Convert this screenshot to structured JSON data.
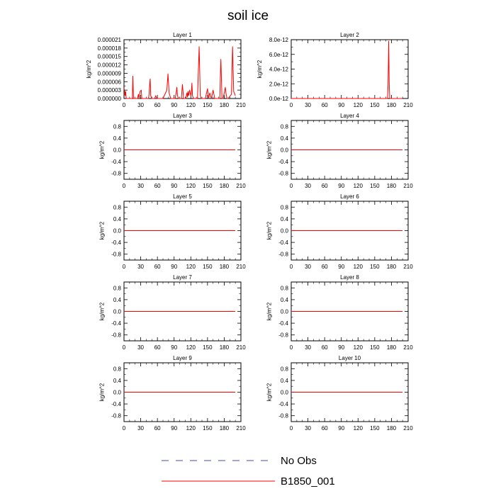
{
  "title": "soil ice",
  "legend": [
    {
      "label": "No Obs",
      "color": "#4a4ab0",
      "dashed": true
    },
    {
      "label": "B1850_001",
      "color": "#ff0000",
      "dashed": false
    }
  ],
  "chart_data": [
    {
      "type": "line",
      "title": "Layer 1",
      "ylabel": "kg/m^2",
      "xlim": [
        0,
        210
      ],
      "xticks": [
        0,
        30,
        60,
        90,
        120,
        150,
        180,
        210
      ],
      "ylim": [
        0,
        2.1e-05
      ],
      "yticks": [
        0,
        3e-06,
        6e-06,
        9e-06,
        1.2e-05,
        1.5e-05,
        1.8e-05,
        2.1e-05
      ],
      "ytick_labels": [
        "0.000000",
        "0.000003",
        "0.000006",
        "0.000009",
        "0.000012",
        "0.000015",
        "0.000018",
        "0.000021"
      ],
      "series": [
        {
          "color": "#ff0000",
          "x": [
            0,
            1,
            2,
            3,
            4,
            13,
            15,
            16,
            17,
            24,
            26,
            27,
            29,
            31,
            32,
            36,
            44,
            45,
            46,
            47,
            48,
            50,
            55,
            56,
            57,
            58,
            59,
            62,
            70,
            77,
            79,
            81,
            84,
            92,
            94,
            95,
            96,
            98,
            103,
            105,
            107,
            111,
            113,
            114,
            115,
            116,
            118,
            120,
            121,
            122,
            123,
            125,
            126,
            132,
            135,
            137,
            139,
            141,
            146,
            150,
            152,
            154,
            157,
            160,
            162,
            163,
            165,
            172,
            174,
            176,
            178,
            182,
            183,
            185,
            187,
            193,
            195,
            197,
            200
          ],
          "y": [
            3.5e-06,
            3e-06,
            1e-06,
            2.5e-06,
            0,
            0,
            0,
            8e-06,
            0,
            0,
            1.5e-06,
            0,
            2.5e-06,
            3e-06,
            0,
            0,
            0,
            1.5e-06,
            4.5e-06,
            7e-06,
            1e-06,
            0,
            0,
            5e-07,
            1e-06,
            5e-07,
            0,
            0,
            0,
            3e-06,
            8.8e-06,
            2e-06,
            0,
            0,
            2.5e-06,
            4e-06,
            1e-06,
            0,
            0,
            5e-06,
            0,
            0,
            2e-06,
            5e-07,
            2.5e-06,
            1e-06,
            3e-06,
            1e-06,
            2e-06,
            5.5e-06,
            1e-06,
            0,
            0,
            0,
            1.85e-05,
            1e-06,
            0,
            0,
            0,
            3.5e-06,
            0,
            2e-06,
            0,
            3e-06,
            1e-06,
            0,
            0,
            0,
            1.4e-05,
            0,
            0,
            4e-06,
            2e-06,
            0,
            0,
            1.5e-06,
            1.85e-05,
            2.5e-06,
            1e-06
          ]
        }
      ]
    },
    {
      "type": "line",
      "title": "Layer 2",
      "ylabel": "kg/m^2",
      "xlim": [
        0,
        210
      ],
      "xticks": [
        0,
        30,
        60,
        90,
        120,
        150,
        180,
        210
      ],
      "ylim": [
        0,
        8e-12
      ],
      "yticks": [
        0,
        2e-12,
        4e-12,
        6e-12,
        8e-12
      ],
      "ytick_labels": [
        "0.0e-12",
        "2.0e-12",
        "4.0e-12",
        "6.0e-12",
        "8.0e-12"
      ],
      "series": [
        {
          "color": "#ff0000",
          "x": [
            0,
            173,
            174,
            175,
            176,
            177,
            200
          ],
          "y": [
            0,
            0,
            2e-12,
            7.8e-12,
            2e-12,
            0,
            0
          ]
        }
      ]
    },
    {
      "type": "line",
      "title": "Layer 3",
      "ylabel": "kg/m^2",
      "xlim": [
        0,
        210
      ],
      "xticks": [
        0,
        30,
        60,
        90,
        120,
        150,
        180,
        210
      ],
      "ylim": [
        -1,
        1
      ],
      "yticks": [
        -0.8,
        -0.4,
        0,
        0.4,
        0.8
      ],
      "ytick_labels": [
        "-0.8",
        "-0.4",
        "0.0",
        "0.4",
        "0.8"
      ],
      "series": [
        {
          "color": "#ff0000",
          "x": [
            0,
            200
          ],
          "y": [
            0,
            0
          ]
        }
      ]
    },
    {
      "type": "line",
      "title": "Layer 4",
      "ylabel": "kg/m^2",
      "xlim": [
        0,
        210
      ],
      "xticks": [
        0,
        30,
        60,
        90,
        120,
        150,
        180,
        210
      ],
      "ylim": [
        -1,
        1
      ],
      "yticks": [
        -0.8,
        -0.4,
        0,
        0.4,
        0.8
      ],
      "ytick_labels": [
        "-0.8",
        "-0.4",
        "0.0",
        "0.4",
        "0.8"
      ],
      "series": [
        {
          "color": "#ff0000",
          "x": [
            0,
            200
          ],
          "y": [
            0,
            0
          ]
        }
      ]
    },
    {
      "type": "line",
      "title": "Layer 5",
      "ylabel": "kg/m^2",
      "xlim": [
        0,
        210
      ],
      "xticks": [
        0,
        30,
        60,
        90,
        120,
        150,
        180,
        210
      ],
      "ylim": [
        -1,
        1
      ],
      "yticks": [
        -0.8,
        -0.4,
        0,
        0.4,
        0.8
      ],
      "ytick_labels": [
        "-0.8",
        "-0.4",
        "0.0",
        "0.4",
        "0.8"
      ],
      "series": [
        {
          "color": "#ff0000",
          "x": [
            0,
            200
          ],
          "y": [
            0,
            0
          ]
        }
      ]
    },
    {
      "type": "line",
      "title": "Layer 6",
      "ylabel": "kg/m^2",
      "xlim": [
        0,
        210
      ],
      "xticks": [
        0,
        30,
        60,
        90,
        120,
        150,
        180,
        210
      ],
      "ylim": [
        -1,
        1
      ],
      "yticks": [
        -0.8,
        -0.4,
        0,
        0.4,
        0.8
      ],
      "ytick_labels": [
        "-0.8",
        "-0.4",
        "0.0",
        "0.4",
        "0.8"
      ],
      "series": [
        {
          "color": "#ff0000",
          "x": [
            0,
            200
          ],
          "y": [
            0,
            0
          ]
        }
      ]
    },
    {
      "type": "line",
      "title": "Layer 7",
      "ylabel": "kg/m^2",
      "xlim": [
        0,
        210
      ],
      "xticks": [
        0,
        30,
        60,
        90,
        120,
        150,
        180,
        210
      ],
      "ylim": [
        -1,
        1
      ],
      "yticks": [
        -0.8,
        -0.4,
        0,
        0.4,
        0.8
      ],
      "ytick_labels": [
        "-0.8",
        "-0.4",
        "0.0",
        "0.4",
        "0.8"
      ],
      "series": [
        {
          "color": "#ff0000",
          "x": [
            0,
            200
          ],
          "y": [
            0,
            0
          ]
        }
      ]
    },
    {
      "type": "line",
      "title": "Layer 8",
      "ylabel": "kg/m^2",
      "xlim": [
        0,
        210
      ],
      "xticks": [
        0,
        30,
        60,
        90,
        120,
        150,
        180,
        210
      ],
      "ylim": [
        -1,
        1
      ],
      "yticks": [
        -0.8,
        -0.4,
        0,
        0.4,
        0.8
      ],
      "ytick_labels": [
        "-0.8",
        "-0.4",
        "0.0",
        "0.4",
        "0.8"
      ],
      "series": [
        {
          "color": "#ff0000",
          "x": [
            0,
            200
          ],
          "y": [
            0,
            0
          ]
        }
      ]
    },
    {
      "type": "line",
      "title": "Layer 9",
      "ylabel": "kg/m^2",
      "xlim": [
        0,
        210
      ],
      "xticks": [
        0,
        30,
        60,
        90,
        120,
        150,
        180,
        210
      ],
      "ylim": [
        -1,
        1
      ],
      "yticks": [
        -0.8,
        -0.4,
        0,
        0.4,
        0.8
      ],
      "ytick_labels": [
        "-0.8",
        "-0.4",
        "0.0",
        "0.4",
        "0.8"
      ],
      "series": [
        {
          "color": "#ff0000",
          "x": [
            0,
            200
          ],
          "y": [
            0,
            0
          ]
        }
      ]
    },
    {
      "type": "line",
      "title": "Layer 10",
      "ylabel": "kg/m^2",
      "xlim": [
        0,
        210
      ],
      "xticks": [
        0,
        30,
        60,
        90,
        120,
        150,
        180,
        210
      ],
      "ylim": [
        -1,
        1
      ],
      "yticks": [
        -0.8,
        -0.4,
        0,
        0.4,
        0.8
      ],
      "ytick_labels": [
        "-0.8",
        "-0.4",
        "0.0",
        "0.4",
        "0.8"
      ],
      "series": [
        {
          "color": "#ff0000",
          "x": [
            0,
            200
          ],
          "y": [
            0,
            0
          ]
        }
      ]
    }
  ]
}
